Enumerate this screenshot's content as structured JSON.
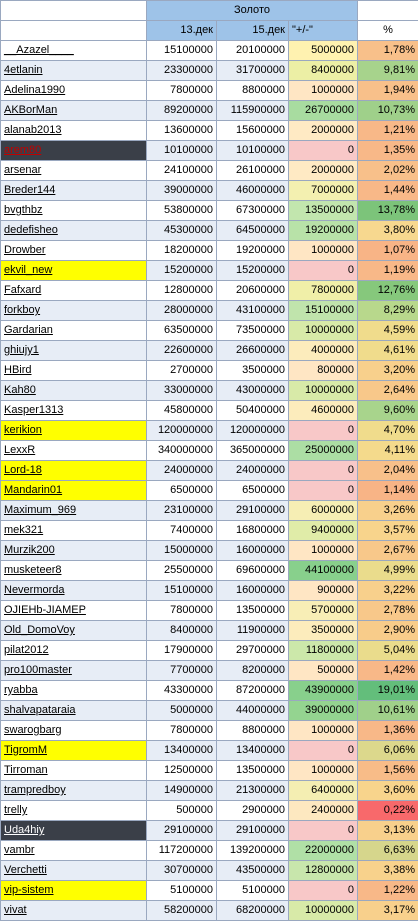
{
  "header": {
    "group_title": "Золото",
    "col_date1": "13.дек",
    "col_date2": "15.дек",
    "col_delta": "\"+/-\"",
    "col_pct": "%"
  },
  "colors": {
    "header_bg": "#9ec3e8",
    "row_alt_bg": "#e7edf6",
    "highlight_yellow": "#ffff00",
    "highlight_dark": "#3a3f48",
    "highlight_dark_red_text": "#c00000",
    "delta_zero_bg": "#f8c8c8",
    "delta_positive_low": "#fbfbce",
    "delta_positive_high": "#c6efce"
  },
  "rows": [
    {
      "name": "__Azazel____",
      "d1": "15100000",
      "d2": "20100000",
      "delta": "5000000",
      "pct": "1,78%",
      "hl": "none",
      "dc": "#fff2b0",
      "pc": "#f8c08a"
    },
    {
      "name": "4etlanin",
      "d1": "23300000",
      "d2": "31700000",
      "delta": "8400000",
      "pct": "9,81%",
      "hl": "none",
      "dc": "#ecefa5",
      "pc": "#a7d38c"
    },
    {
      "name": "Adelina1990",
      "d1": "7800000",
      "d2": "8800000",
      "delta": "1000000",
      "pct": "1,94%",
      "hl": "none",
      "dc": "#ffe6c4",
      "pc": "#f8c08a"
    },
    {
      "name": "AKBorMan",
      "d1": "89200000",
      "d2": "115900000",
      "delta": "26700000",
      "pct": "10,73%",
      "hl": "none",
      "dc": "#a8dca0",
      "pc": "#9fd08a"
    },
    {
      "name": "alanab2013",
      "d1": "13600000",
      "d2": "15600000",
      "delta": "2000000",
      "pct": "1,21%",
      "hl": "none",
      "dc": "#ffeac4",
      "pc": "#f8b888"
    },
    {
      "name": "arem80",
      "d1": "10100000",
      "d2": "10100000",
      "delta": "0",
      "pct": "1,35%",
      "hl": "dark",
      "dc": "#f8c8c8",
      "pc": "#f8b888"
    },
    {
      "name": "arsenar",
      "d1": "24100000",
      "d2": "26100000",
      "delta": "2000000",
      "pct": "2,02%",
      "hl": "none",
      "dc": "#ffeac4",
      "pc": "#f8c08a"
    },
    {
      "name": "Breder144",
      "d1": "39000000",
      "d2": "46000000",
      "delta": "7000000",
      "pct": "1,44%",
      "hl": "none",
      "dc": "#f3f0b0",
      "pc": "#f8b888"
    },
    {
      "name": "bvgthbz",
      "d1": "53800000",
      "d2": "67300000",
      "delta": "13500000",
      "pct": "13,78%",
      "hl": "none",
      "dc": "#c2e6ae",
      "pc": "#7cc47a"
    },
    {
      "name": "dedefisheo",
      "d1": "45300000",
      "d2": "64500000",
      "delta": "19200000",
      "pct": "3,80%",
      "hl": "none",
      "dc": "#b8e2a8",
      "pc": "#f7d88f"
    },
    {
      "name": "Drowber",
      "d1": "18200000",
      "d2": "19200000",
      "delta": "1000000",
      "pct": "1,07%",
      "hl": "none",
      "dc": "#ffe6c4",
      "pc": "#f8b486"
    },
    {
      "name": "ekvil_new",
      "d1": "15200000",
      "d2": "15200000",
      "delta": "0",
      "pct": "1,19%",
      "hl": "yellow",
      "dc": "#f8c8c8",
      "pc": "#f8b888"
    },
    {
      "name": "Fafxard",
      "d1": "12800000",
      "d2": "20600000",
      "delta": "7800000",
      "pct": "12,76%",
      "hl": "none",
      "dc": "#f0efa8",
      "pc": "#86c87c"
    },
    {
      "name": "forkboy",
      "d1": "28000000",
      "d2": "43100000",
      "delta": "15100000",
      "pct": "8,29%",
      "hl": "none",
      "dc": "#c0e4ac",
      "pc": "#b8d88c"
    },
    {
      "name": "Gardarian",
      "d1": "63500000",
      "d2": "73500000",
      "delta": "10000000",
      "pct": "4,59%",
      "hl": "none",
      "dc": "#d8eaa8",
      "pc": "#f0dc8c"
    },
    {
      "name": "ghiujy1",
      "d1": "22600000",
      "d2": "26600000",
      "delta": "4000000",
      "pct": "4,61%",
      "hl": "none",
      "dc": "#fcecbc",
      "pc": "#f0dc8c"
    },
    {
      "name": "HBird",
      "d1": "2700000",
      "d2": "3500000",
      "delta": "800000",
      "pct": "3,20%",
      "hl": "none",
      "dc": "#ffe6c4",
      "pc": "#f8d08c"
    },
    {
      "name": "Kah80",
      "d1": "33000000",
      "d2": "43000000",
      "delta": "10000000",
      "pct": "2,64%",
      "hl": "none",
      "dc": "#d8eaa8",
      "pc": "#f8c88a"
    },
    {
      "name": "Kasper1313",
      "d1": "45800000",
      "d2": "50400000",
      "delta": "4600000",
      "pct": "9,60%",
      "hl": "none",
      "dc": "#fcecbc",
      "pc": "#a8d48c"
    },
    {
      "name": "kerikion",
      "d1": "120000000",
      "d2": "120000000",
      "delta": "0",
      "pct": "4,70%",
      "hl": "yellow",
      "dc": "#f8c8c8",
      "pc": "#f0dc8c"
    },
    {
      "name": "LexxR",
      "d1": "340000000",
      "d2": "365000000",
      "delta": "25000000",
      "pct": "4,11%",
      "hl": "none",
      "dc": "#acdea4",
      "pc": "#f4da8c"
    },
    {
      "name": "Lord-18",
      "d1": "24000000",
      "d2": "24000000",
      "delta": "0",
      "pct": "2,04%",
      "hl": "yellow",
      "dc": "#f8c8c8",
      "pc": "#f8c08a"
    },
    {
      "name": "Mandarin01",
      "d1": "6500000",
      "d2": "6500000",
      "delta": "0",
      "pct": "1,14%",
      "hl": "yellow",
      "dc": "#f8c8c8",
      "pc": "#f8b486"
    },
    {
      "name": "Maximum_969",
      "d1": "23100000",
      "d2": "29100000",
      "delta": "6000000",
      "pct": "3,26%",
      "hl": "none",
      "dc": "#f6eeb4",
      "pc": "#f8d08c"
    },
    {
      "name": "mek321",
      "d1": "7400000",
      "d2": "16800000",
      "delta": "9400000",
      "pct": "3,57%",
      "hl": "none",
      "dc": "#e0eca8",
      "pc": "#f8d48c"
    },
    {
      "name": "Murzik200",
      "d1": "15000000",
      "d2": "16000000",
      "delta": "1000000",
      "pct": "2,67%",
      "hl": "none",
      "dc": "#ffe6c4",
      "pc": "#f8c88a"
    },
    {
      "name": "musketeer8",
      "d1": "25500000",
      "d2": "69600000",
      "delta": "44100000",
      "pct": "4,99%",
      "hl": "none",
      "dc": "#88d08c",
      "pc": "#eadc8c"
    },
    {
      "name": "Nevermorda",
      "d1": "15100000",
      "d2": "16000000",
      "delta": "900000",
      "pct": "3,22%",
      "hl": "none",
      "dc": "#ffe6c4",
      "pc": "#f8d08c"
    },
    {
      "name": "OJIEHb-JIAMEP",
      "d1": "7800000",
      "d2": "13500000",
      "delta": "5700000",
      "pct": "2,78%",
      "hl": "none",
      "dc": "#f8eeb6",
      "pc": "#f8c88a"
    },
    {
      "name": "Old_DomoVoy",
      "d1": "8400000",
      "d2": "11900000",
      "delta": "3500000",
      "pct": "2,90%",
      "hl": "none",
      "dc": "#fcecbc",
      "pc": "#f8cc8a"
    },
    {
      "name": "pilat2012",
      "d1": "17900000",
      "d2": "29700000",
      "delta": "11800000",
      "pct": "5,04%",
      "hl": "none",
      "dc": "#cce8aa",
      "pc": "#eadc8c"
    },
    {
      "name": "pro100master",
      "d1": "7700000",
      "d2": "8200000",
      "delta": "500000",
      "pct": "1,42%",
      "hl": "none",
      "dc": "#ffe6c4",
      "pc": "#f8b888"
    },
    {
      "name": "ryabba",
      "d1": "43300000",
      "d2": "87200000",
      "delta": "43900000",
      "pct": "19,01%",
      "hl": "none",
      "dc": "#88d08c",
      "pc": "#63be7b"
    },
    {
      "name": "shalvapataraia",
      "d1": "5000000",
      "d2": "44000000",
      "delta": "39000000",
      "pct": "10,61%",
      "hl": "none",
      "dc": "#94d490",
      "pc": "#a0d08a"
    },
    {
      "name": "swarogbarg",
      "d1": "7800000",
      "d2": "8800000",
      "delta": "1000000",
      "pct": "1,36%",
      "hl": "none",
      "dc": "#ffe6c4",
      "pc": "#f8b888"
    },
    {
      "name": "TigromM",
      "d1": "13400000",
      "d2": "13400000",
      "delta": "0",
      "pct": "6,06%",
      "hl": "yellow",
      "dc": "#f8c8c8",
      "pc": "#dcd88c"
    },
    {
      "name": "Tirroman",
      "d1": "12500000",
      "d2": "13500000",
      "delta": "1000000",
      "pct": "1,56%",
      "hl": "none",
      "dc": "#ffe6c4",
      "pc": "#f8bc88"
    },
    {
      "name": "trampredboy",
      "d1": "14900000",
      "d2": "21300000",
      "delta": "6400000",
      "pct": "3,60%",
      "hl": "none",
      "dc": "#f4eeb2",
      "pc": "#f8d48c"
    },
    {
      "name": "trelly",
      "d1": "500000",
      "d2": "2900000",
      "delta": "2400000",
      "pct": "0,22%",
      "hl": "none",
      "dc": "#fde8c0",
      "pc": "#f8696b"
    },
    {
      "name": "Uda4hiy",
      "d1": "29100000",
      "d2": "29100000",
      "delta": "0",
      "pct": "3,13%",
      "hl": "dark",
      "dc": "#f8c8c8",
      "pc": "#f8d08c"
    },
    {
      "name": "vambr",
      "d1": "117200000",
      "d2": "139200000",
      "delta": "22000000",
      "pct": "6,63%",
      "hl": "none",
      "dc": "#b0e0a6",
      "pc": "#d6d68c"
    },
    {
      "name": "Verchetti",
      "d1": "30700000",
      "d2": "43500000",
      "delta": "12800000",
      "pct": "3,38%",
      "hl": "none",
      "dc": "#c8e6ac",
      "pc": "#f8d28c"
    },
    {
      "name": "vip-sistem",
      "d1": "5100000",
      "d2": "5100000",
      "delta": "0",
      "pct": "1,22%",
      "hl": "yellow",
      "dc": "#f8c8c8",
      "pc": "#f8b888"
    },
    {
      "name": "vivat",
      "d1": "58200000",
      "d2": "68200000",
      "delta": "10000000",
      "pct": "3,17%",
      "hl": "none",
      "dc": "#d8eaa8",
      "pc": "#f8d08c"
    }
  ]
}
